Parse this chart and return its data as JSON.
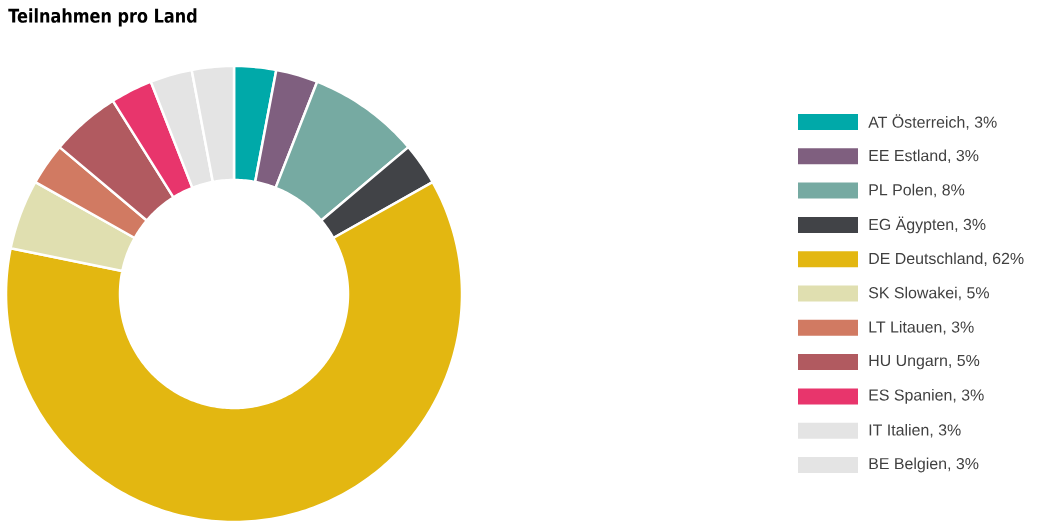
{
  "chart_data": {
    "type": "donut",
    "title": "Teilnahmen pro Land",
    "categories": [
      "AT Österreich, 3%",
      "EE Estland, 3%",
      "PL Polen, 8%",
      "EG Ägypten, 3%",
      "DE Deutschland, 62%",
      "SK Slowakei, 5%",
      "LT Litauen, 3%",
      "HU Ungarn, 5%",
      "ES Spanien, 3%",
      "IT Italien, 3%",
      "BE Belgien, 3%"
    ],
    "values": [
      3,
      3,
      8,
      3,
      62,
      5,
      3,
      5,
      3,
      3,
      3
    ],
    "colors": [
      "#00a9a9",
      "#7f5f7f",
      "#76aaa2",
      "#414347",
      "#e3b711",
      "#e0dfb0",
      "#d17a62",
      "#b15a60",
      "#e8356c",
      "#e4e4e4",
      "#e4e4e4"
    ],
    "legend": "right"
  }
}
